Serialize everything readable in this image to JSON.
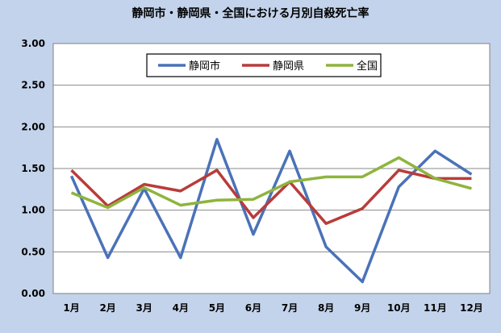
{
  "chart_data": {
    "type": "line",
    "title": "静岡市・静岡県・全国における月別自殺死亡率",
    "xlabel": "",
    "ylabel": "",
    "categories": [
      "1月",
      "2月",
      "3月",
      "4月",
      "5月",
      "6月",
      "7月",
      "8月",
      "9月",
      "10月",
      "11月",
      "12月"
    ],
    "ylim": [
      0,
      3
    ],
    "yticks": [
      "3.00",
      "2.50",
      "2.00",
      "1.50",
      "1.00",
      "0.50",
      "0.00"
    ],
    "grid": true,
    "legend_position": "top",
    "series": [
      {
        "name": "静岡市",
        "color": "#4a72b8",
        "values": [
          1.41,
          0.43,
          1.26,
          0.43,
          1.85,
          0.71,
          1.71,
          0.56,
          0.14,
          1.28,
          1.71,
          1.43
        ]
      },
      {
        "name": "静岡県",
        "color": "#b83c3a",
        "values": [
          1.48,
          1.05,
          1.31,
          1.23,
          1.48,
          0.91,
          1.34,
          0.84,
          1.02,
          1.48,
          1.38,
          1.38
        ]
      },
      {
        "name": "全国",
        "color": "#8eb43e",
        "values": [
          1.21,
          1.03,
          1.27,
          1.06,
          1.12,
          1.13,
          1.34,
          1.4,
          1.4,
          1.63,
          1.38,
          1.26
        ]
      }
    ]
  }
}
